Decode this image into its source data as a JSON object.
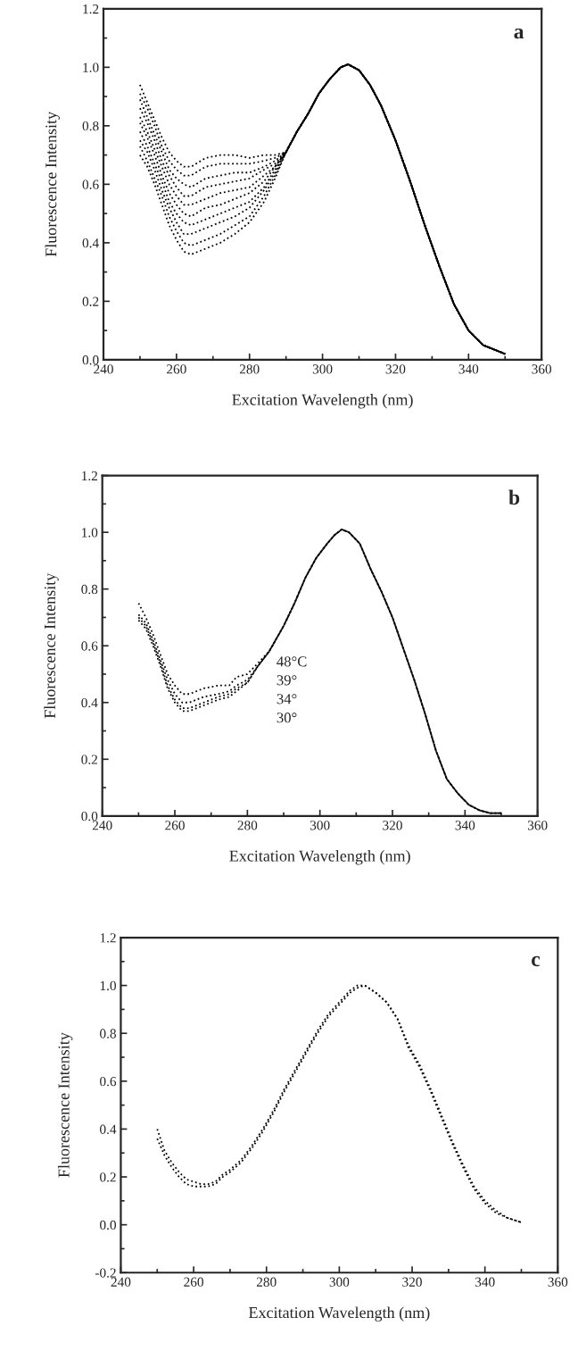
{
  "chart_data": [
    {
      "type": "line",
      "xlabel": "Excitation Wavelength (nm)",
      "ylabel": "Fluorescence Intensity",
      "annotations": [
        "a"
      ],
      "line_style": "dotted",
      "xlim": [
        240,
        360
      ],
      "xticks": [
        240,
        260,
        280,
        300,
        320,
        340,
        360
      ],
      "ylim": [
        0,
        1.2
      ],
      "yticks": [
        {
          "value": 0,
          "label": "0.0"
        },
        {
          "value": 0.2,
          "label": "0.2"
        },
        {
          "value": 0.4,
          "label": "0.4"
        },
        {
          "value": 0.6,
          "label": "0.6"
        },
        {
          "value": 0.8,
          "label": "0.8"
        },
        {
          "value": 1.0,
          "label": "1.0"
        },
        {
          "value": 1.2,
          "label": "1.2"
        }
      ],
      "x": [
        250,
        252,
        254,
        256,
        258,
        260,
        262,
        264,
        268,
        272,
        276,
        280,
        284,
        287,
        290,
        293,
        296,
        299,
        302,
        305,
        307,
        310,
        313,
        316,
        320,
        324,
        328,
        332,
        336,
        340,
        344,
        348,
        350
      ],
      "series": [
        {
          "color": "#000000",
          "values": [
            0.94,
            0.88,
            0.82,
            0.76,
            0.71,
            0.68,
            0.66,
            0.66,
            0.69,
            0.7,
            0.7,
            0.69,
            0.7,
            0.7,
            0.71,
            0.78,
            0.84,
            0.91,
            0.96,
            1.0,
            1.01,
            0.99,
            0.94,
            0.87,
            0.75,
            0.61,
            0.46,
            0.32,
            0.19,
            0.1,
            0.05,
            0.03,
            0.02
          ]
        },
        {
          "color": "#000000",
          "values": [
            0.91,
            0.86,
            0.8,
            0.73,
            0.68,
            0.65,
            0.63,
            0.63,
            0.66,
            0.67,
            0.67,
            0.67,
            0.68,
            0.69,
            0.71,
            0.78,
            0.84,
            0.91,
            0.96,
            1.0,
            1.01,
            0.99,
            0.94,
            0.87,
            0.75,
            0.61,
            0.46,
            0.32,
            0.19,
            0.1,
            0.05,
            0.03,
            0.02
          ]
        },
        {
          "color": "#000000",
          "values": [
            0.89,
            0.83,
            0.77,
            0.71,
            0.65,
            0.62,
            0.6,
            0.59,
            0.62,
            0.63,
            0.64,
            0.64,
            0.66,
            0.68,
            0.71,
            0.78,
            0.84,
            0.91,
            0.96,
            1.0,
            1.01,
            0.99,
            0.94,
            0.87,
            0.75,
            0.61,
            0.46,
            0.32,
            0.19,
            0.1,
            0.05,
            0.03,
            0.02
          ]
        },
        {
          "color": "#000000",
          "values": [
            0.86,
            0.81,
            0.75,
            0.68,
            0.63,
            0.59,
            0.56,
            0.56,
            0.59,
            0.6,
            0.61,
            0.62,
            0.65,
            0.67,
            0.71,
            0.78,
            0.84,
            0.91,
            0.96,
            1.0,
            1.01,
            0.99,
            0.94,
            0.87,
            0.75,
            0.61,
            0.46,
            0.32,
            0.19,
            0.1,
            0.05,
            0.03,
            0.02
          ]
        },
        {
          "color": "#000000",
          "values": [
            0.83,
            0.78,
            0.72,
            0.66,
            0.6,
            0.56,
            0.53,
            0.53,
            0.55,
            0.57,
            0.58,
            0.59,
            0.63,
            0.66,
            0.71,
            0.78,
            0.84,
            0.91,
            0.96,
            1.0,
            1.01,
            0.99,
            0.94,
            0.87,
            0.75,
            0.61,
            0.46,
            0.32,
            0.19,
            0.1,
            0.05,
            0.03,
            0.02
          ]
        },
        {
          "color": "#000000",
          "values": [
            0.81,
            0.76,
            0.7,
            0.63,
            0.57,
            0.53,
            0.5,
            0.49,
            0.52,
            0.53,
            0.55,
            0.57,
            0.61,
            0.66,
            0.71,
            0.78,
            0.84,
            0.91,
            0.96,
            1.0,
            1.01,
            0.99,
            0.94,
            0.87,
            0.75,
            0.61,
            0.46,
            0.32,
            0.19,
            0.1,
            0.05,
            0.03,
            0.02
          ]
        },
        {
          "color": "#000000",
          "values": [
            0.78,
            0.73,
            0.67,
            0.61,
            0.54,
            0.5,
            0.47,
            0.46,
            0.48,
            0.5,
            0.52,
            0.54,
            0.59,
            0.65,
            0.71,
            0.78,
            0.84,
            0.91,
            0.96,
            1.0,
            1.01,
            0.99,
            0.94,
            0.87,
            0.75,
            0.61,
            0.46,
            0.32,
            0.19,
            0.1,
            0.05,
            0.03,
            0.02
          ]
        },
        {
          "color": "#000000",
          "values": [
            0.75,
            0.71,
            0.65,
            0.58,
            0.52,
            0.47,
            0.43,
            0.43,
            0.45,
            0.47,
            0.49,
            0.52,
            0.58,
            0.64,
            0.71,
            0.78,
            0.84,
            0.91,
            0.96,
            1.0,
            1.01,
            0.99,
            0.94,
            0.87,
            0.75,
            0.61,
            0.46,
            0.32,
            0.19,
            0.1,
            0.05,
            0.03,
            0.02
          ]
        },
        {
          "color": "#000000",
          "values": [
            0.73,
            0.68,
            0.62,
            0.56,
            0.49,
            0.44,
            0.4,
            0.39,
            0.41,
            0.43,
            0.46,
            0.49,
            0.56,
            0.63,
            0.71,
            0.78,
            0.84,
            0.91,
            0.96,
            1.0,
            1.01,
            0.99,
            0.94,
            0.87,
            0.75,
            0.61,
            0.46,
            0.32,
            0.19,
            0.1,
            0.05,
            0.03,
            0.02
          ]
        },
        {
          "color": "#000000",
          "values": [
            0.7,
            0.66,
            0.6,
            0.53,
            0.46,
            0.41,
            0.37,
            0.36,
            0.38,
            0.4,
            0.43,
            0.47,
            0.54,
            0.62,
            0.71,
            0.78,
            0.84,
            0.91,
            0.96,
            1.0,
            1.01,
            0.99,
            0.94,
            0.87,
            0.75,
            0.61,
            0.46,
            0.32,
            0.19,
            0.1,
            0.05,
            0.03,
            0.02
          ]
        }
      ]
    },
    {
      "type": "line",
      "xlabel": "Excitation Wavelength (nm)",
      "ylabel": "Fluorescence Intensity",
      "annotations": [
        "b",
        "48°C",
        "39°",
        "34°",
        "30°"
      ],
      "line_style": "dotted",
      "xlim": [
        240,
        360
      ],
      "xticks": [
        240,
        260,
        280,
        300,
        320,
        340,
        360
      ],
      "ylim": [
        0,
        1.2
      ],
      "yticks": [
        {
          "value": 0,
          "label": "0.0"
        },
        {
          "value": 0.2,
          "label": "0.2"
        },
        {
          "value": 0.4,
          "label": "0.4"
        },
        {
          "value": 0.6,
          "label": "0.6"
        },
        {
          "value": 0.8,
          "label": "0.8"
        },
        {
          "value": 1.0,
          "label": "1.0"
        },
        {
          "value": 1.2,
          "label": "1.2"
        }
      ],
      "x": [
        250,
        252,
        254,
        256,
        258,
        260,
        262,
        264,
        268,
        272,
        275,
        277,
        280,
        283,
        286,
        290,
        293,
        296,
        299,
        302,
        304,
        306,
        308,
        311,
        314,
        317,
        320,
        323,
        326,
        329,
        332,
        335,
        338,
        341,
        344,
        347,
        350
      ],
      "series": [
        {
          "color": "#000000",
          "values": [
            0.75,
            0.7,
            0.64,
            0.57,
            0.5,
            0.46,
            0.43,
            0.43,
            0.45,
            0.46,
            0.46,
            0.49,
            0.5,
            0.54,
            0.58,
            0.67,
            0.75,
            0.84,
            0.91,
            0.96,
            0.99,
            1.01,
            1.0,
            0.96,
            0.87,
            0.79,
            0.7,
            0.59,
            0.48,
            0.36,
            0.23,
            0.13,
            0.08,
            0.04,
            0.02,
            0.01,
            0.01
          ]
        },
        {
          "color": "#000000",
          "values": [
            0.71,
            0.68,
            0.62,
            0.55,
            0.48,
            0.43,
            0.4,
            0.4,
            0.42,
            0.43,
            0.44,
            0.46,
            0.48,
            0.53,
            0.58,
            0.67,
            0.75,
            0.84,
            0.91,
            0.96,
            0.99,
            1.01,
            1.0,
            0.96,
            0.87,
            0.79,
            0.7,
            0.59,
            0.48,
            0.36,
            0.23,
            0.13,
            0.08,
            0.04,
            0.02,
            0.01,
            0.01
          ]
        },
        {
          "color": "#000000",
          "values": [
            0.7,
            0.67,
            0.61,
            0.54,
            0.46,
            0.41,
            0.38,
            0.38,
            0.4,
            0.42,
            0.43,
            0.45,
            0.47,
            0.53,
            0.58,
            0.67,
            0.75,
            0.84,
            0.91,
            0.96,
            0.99,
            1.01,
            1.0,
            0.96,
            0.87,
            0.79,
            0.7,
            0.59,
            0.48,
            0.36,
            0.23,
            0.13,
            0.08,
            0.04,
            0.02,
            0.01,
            0.01
          ]
        },
        {
          "color": "#000000",
          "values": [
            0.69,
            0.66,
            0.6,
            0.53,
            0.45,
            0.4,
            0.37,
            0.37,
            0.39,
            0.41,
            0.42,
            0.44,
            0.47,
            0.53,
            0.58,
            0.67,
            0.75,
            0.84,
            0.91,
            0.96,
            0.99,
            1.01,
            1.0,
            0.96,
            0.87,
            0.79,
            0.7,
            0.59,
            0.48,
            0.36,
            0.23,
            0.13,
            0.08,
            0.04,
            0.02,
            0.01,
            0.01
          ]
        }
      ]
    },
    {
      "type": "line",
      "xlabel": "Excitation Wavelength (nm)",
      "ylabel": "Fluorescence Intensity",
      "annotations": [
        "c"
      ],
      "line_style": "dotted",
      "xlim": [
        240,
        360
      ],
      "xticks": [
        240,
        260,
        280,
        300,
        320,
        340,
        360
      ],
      "ylim": [
        -0.2,
        1.2
      ],
      "yticks": [
        {
          "value": -0.2,
          "label": "-0.2"
        },
        {
          "value": 0,
          "label": "0.0"
        },
        {
          "value": 0.2,
          "label": "0.2"
        },
        {
          "value": 0.4,
          "label": "0.4"
        },
        {
          "value": 0.6,
          "label": "0.6"
        },
        {
          "value": 0.8,
          "label": "0.8"
        },
        {
          "value": 1.0,
          "label": "1.0"
        },
        {
          "value": 1.2,
          "label": "1.2"
        }
      ],
      "x": [
        250,
        252,
        254,
        256,
        258,
        260,
        262,
        264,
        266,
        268,
        270,
        273,
        276,
        279,
        282,
        285,
        288,
        291,
        294,
        297,
        300,
        303,
        305,
        307,
        310,
        313,
        316,
        319,
        322,
        325,
        328,
        331,
        334,
        337,
        340,
        343,
        346,
        350
      ],
      "series": [
        {
          "color": "#000000",
          "values": [
            0.4,
            0.31,
            0.26,
            0.22,
            0.19,
            0.18,
            0.17,
            0.17,
            0.18,
            0.21,
            0.23,
            0.27,
            0.33,
            0.4,
            0.48,
            0.57,
            0.65,
            0.73,
            0.81,
            0.88,
            0.93,
            0.98,
            1.0,
            1.0,
            0.97,
            0.93,
            0.86,
            0.74,
            0.66,
            0.56,
            0.45,
            0.34,
            0.24,
            0.15,
            0.09,
            0.05,
            0.03,
            0.01
          ]
        },
        {
          "color": "#000000",
          "values": [
            0.36,
            0.29,
            0.24,
            0.2,
            0.17,
            0.16,
            0.16,
            0.16,
            0.17,
            0.2,
            0.22,
            0.26,
            0.32,
            0.39,
            0.47,
            0.56,
            0.64,
            0.72,
            0.8,
            0.87,
            0.92,
            0.97,
            0.99,
            1.0,
            0.97,
            0.93,
            0.86,
            0.75,
            0.67,
            0.57,
            0.46,
            0.35,
            0.25,
            0.16,
            0.1,
            0.06,
            0.03,
            0.01
          ]
        }
      ]
    }
  ]
}
